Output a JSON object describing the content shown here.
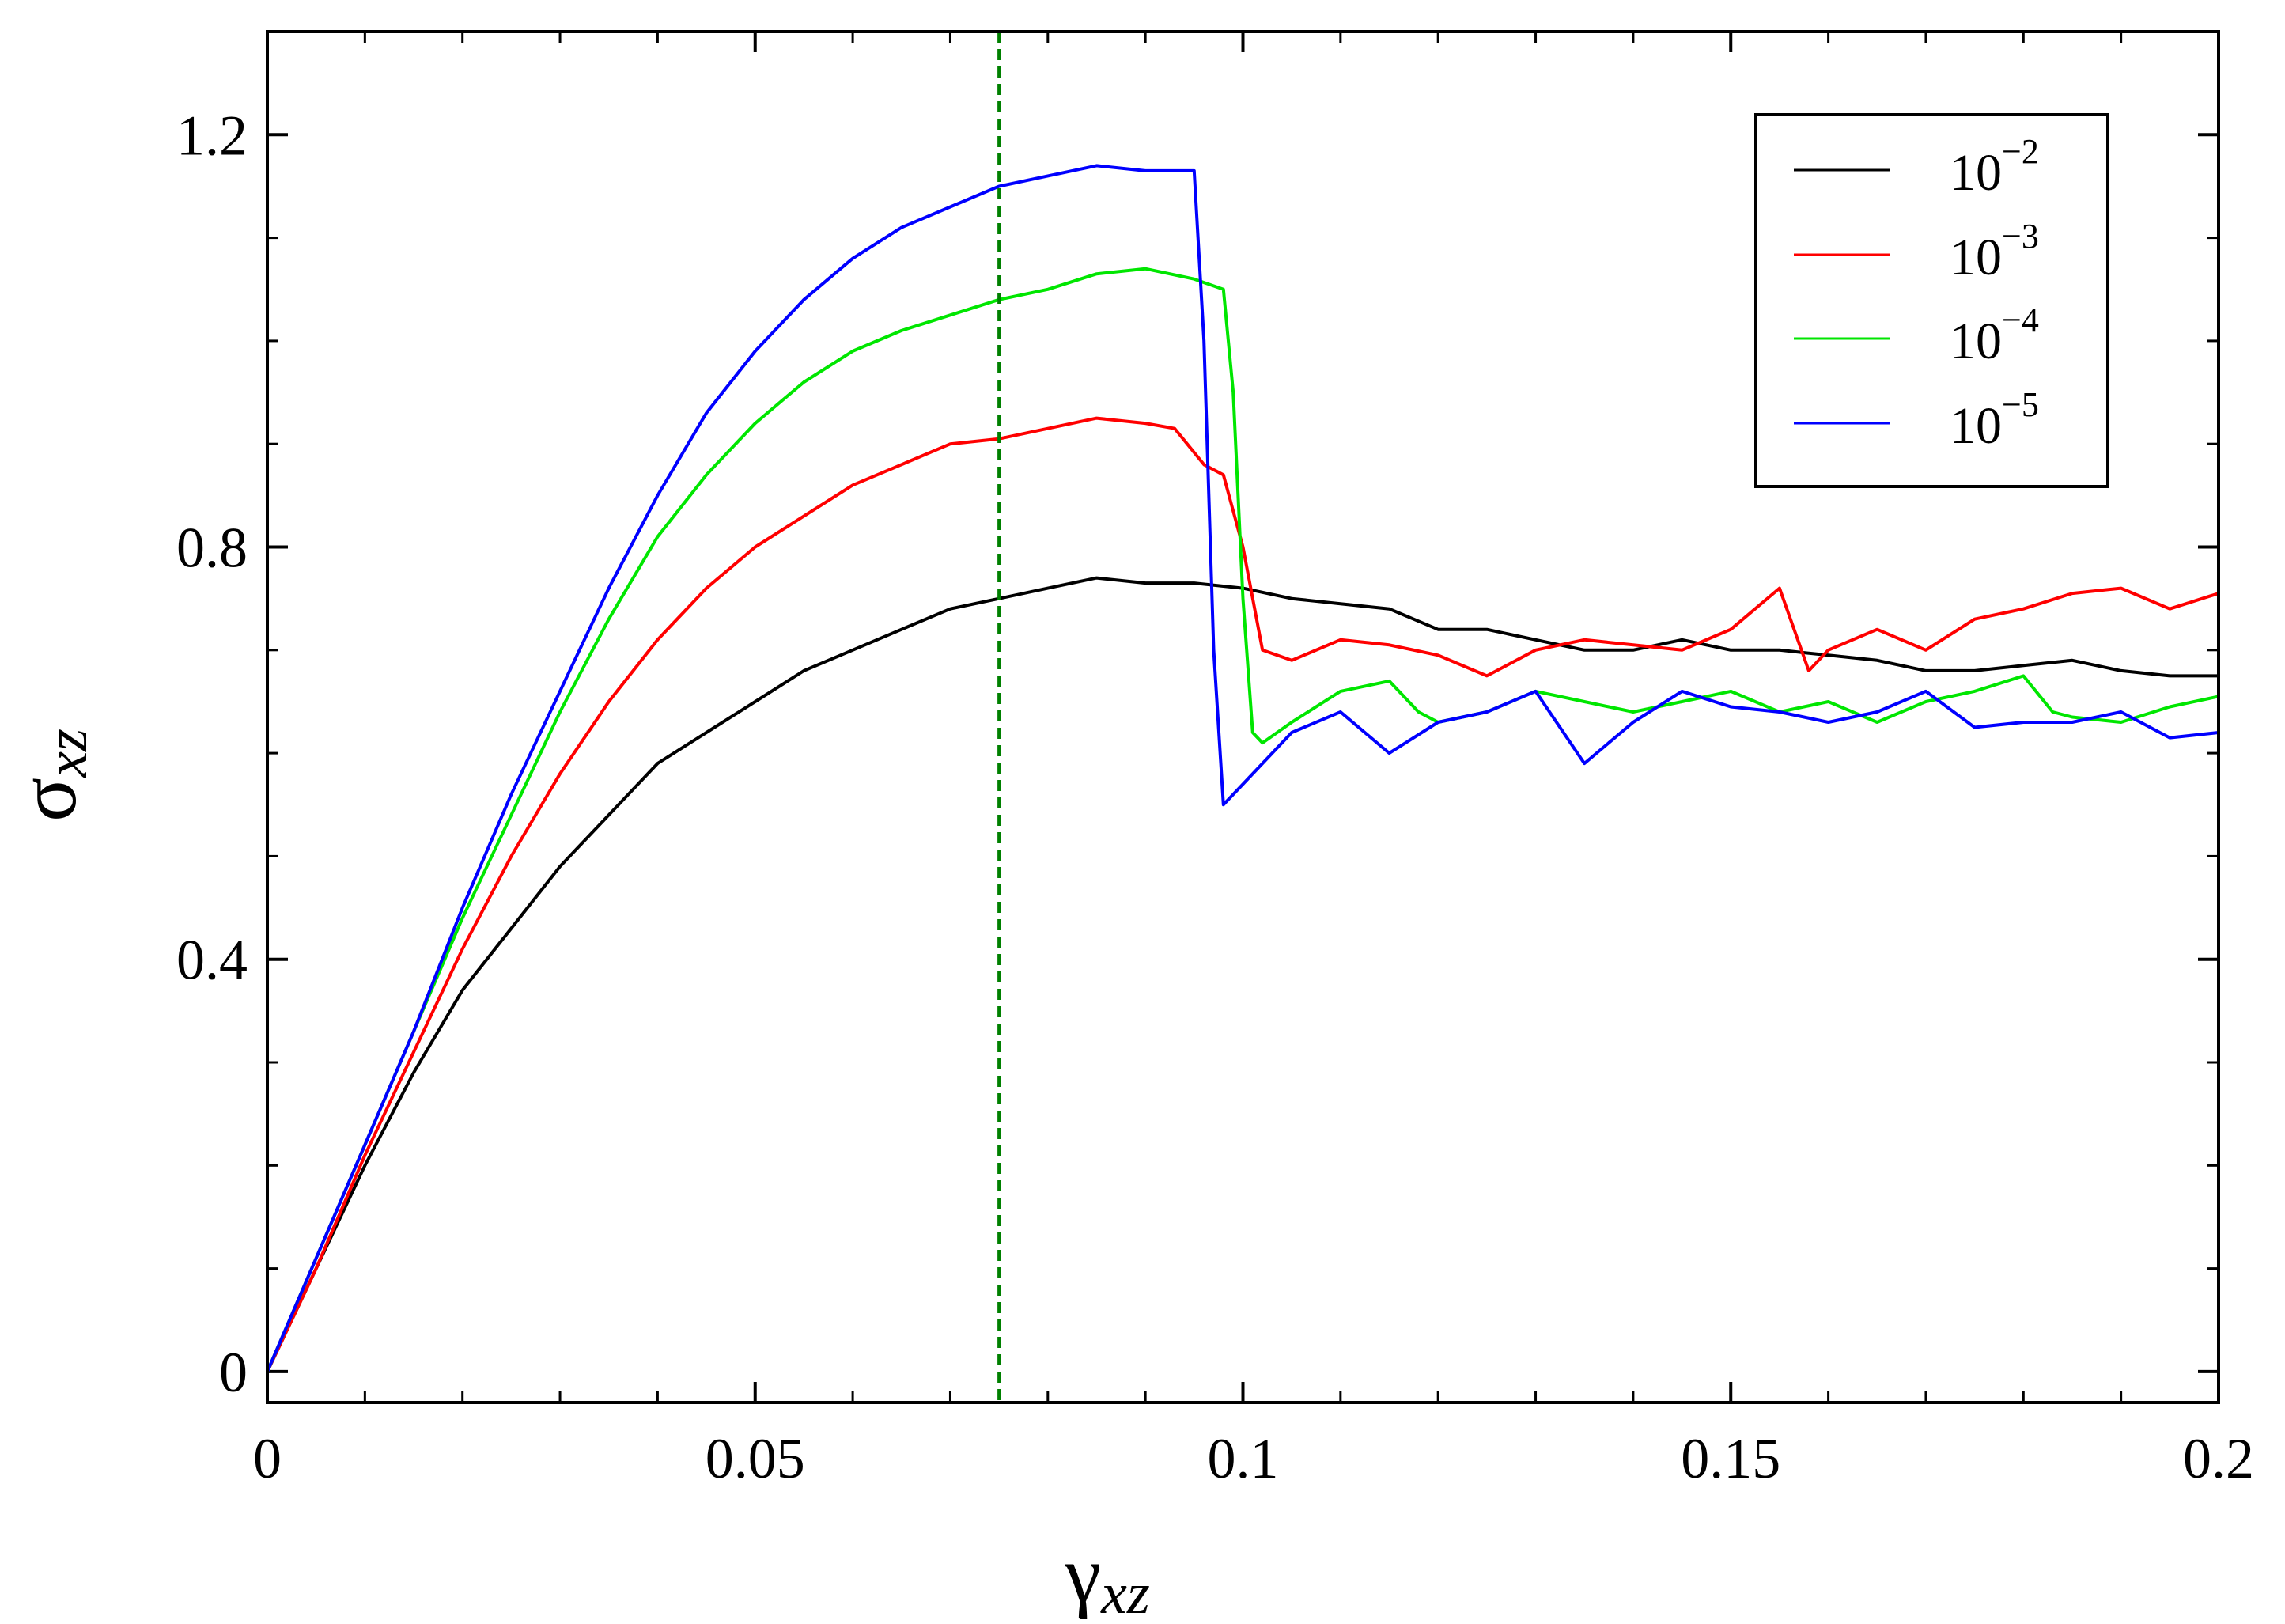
{
  "chart_data": {
    "type": "line",
    "xlabel": {
      "symbol": "γ",
      "subscript": "xz"
    },
    "ylabel": {
      "symbol": "σ",
      "subscript": "xz"
    },
    "xlim": [
      0,
      0.2
    ],
    "ylim": [
      -0.03,
      1.3
    ],
    "xticks": [
      {
        "value": 0,
        "label": "0"
      },
      {
        "value": 0.05,
        "label": "0.05"
      },
      {
        "value": 0.1,
        "label": "0.1"
      },
      {
        "value": 0.15,
        "label": "0.15"
      },
      {
        "value": 0.2,
        "label": "0.2"
      }
    ],
    "yticks": [
      {
        "value": 0,
        "label": "0"
      },
      {
        "value": 0.4,
        "label": "0.4"
      },
      {
        "value": 0.8,
        "label": "0.8"
      },
      {
        "value": 1.2,
        "label": "1.2"
      }
    ],
    "x_minor_step": 0.01,
    "y_minor_step": 0.1,
    "grid": false,
    "legend_position": "top-right",
    "vline": {
      "x": 0.075,
      "color": "#008000",
      "style": "dashed"
    },
    "series": [
      {
        "name": "10",
        "exponent": "−2",
        "color": "#000000",
        "points": [
          [
            0,
            0
          ],
          [
            0.005,
            0.1
          ],
          [
            0.01,
            0.2
          ],
          [
            0.015,
            0.29
          ],
          [
            0.02,
            0.37
          ],
          [
            0.025,
            0.43
          ],
          [
            0.03,
            0.49
          ],
          [
            0.035,
            0.54
          ],
          [
            0.04,
            0.59
          ],
          [
            0.045,
            0.62
          ],
          [
            0.05,
            0.65
          ],
          [
            0.055,
            0.68
          ],
          [
            0.06,
            0.7
          ],
          [
            0.065,
            0.72
          ],
          [
            0.07,
            0.74
          ],
          [
            0.075,
            0.75
          ],
          [
            0.08,
            0.76
          ],
          [
            0.085,
            0.77
          ],
          [
            0.09,
            0.765
          ],
          [
            0.095,
            0.765
          ],
          [
            0.1,
            0.76
          ],
          [
            0.105,
            0.75
          ],
          [
            0.11,
            0.745
          ],
          [
            0.115,
            0.74
          ],
          [
            0.12,
            0.72
          ],
          [
            0.125,
            0.72
          ],
          [
            0.13,
            0.71
          ],
          [
            0.135,
            0.7
          ],
          [
            0.14,
            0.7
          ],
          [
            0.145,
            0.71
          ],
          [
            0.15,
            0.7
          ],
          [
            0.155,
            0.7
          ],
          [
            0.16,
            0.695
          ],
          [
            0.165,
            0.69
          ],
          [
            0.17,
            0.68
          ],
          [
            0.175,
            0.68
          ],
          [
            0.18,
            0.685
          ],
          [
            0.185,
            0.69
          ],
          [
            0.19,
            0.68
          ],
          [
            0.195,
            0.675
          ],
          [
            0.2,
            0.675
          ]
        ]
      },
      {
        "name": "10",
        "exponent": "−3",
        "color": "#ff0000",
        "points": [
          [
            0,
            0
          ],
          [
            0.005,
            0.1
          ],
          [
            0.01,
            0.21
          ],
          [
            0.015,
            0.31
          ],
          [
            0.02,
            0.41
          ],
          [
            0.025,
            0.5
          ],
          [
            0.03,
            0.58
          ],
          [
            0.035,
            0.65
          ],
          [
            0.04,
            0.71
          ],
          [
            0.045,
            0.76
          ],
          [
            0.05,
            0.8
          ],
          [
            0.055,
            0.83
          ],
          [
            0.06,
            0.86
          ],
          [
            0.065,
            0.88
          ],
          [
            0.07,
            0.9
          ],
          [
            0.075,
            0.905
          ],
          [
            0.08,
            0.915
          ],
          [
            0.085,
            0.925
          ],
          [
            0.09,
            0.92
          ],
          [
            0.093,
            0.915
          ],
          [
            0.096,
            0.88
          ],
          [
            0.098,
            0.87
          ],
          [
            0.1,
            0.8
          ],
          [
            0.102,
            0.7
          ],
          [
            0.105,
            0.69
          ],
          [
            0.11,
            0.71
          ],
          [
            0.115,
            0.705
          ],
          [
            0.12,
            0.695
          ],
          [
            0.125,
            0.675
          ],
          [
            0.13,
            0.7
          ],
          [
            0.135,
            0.71
          ],
          [
            0.14,
            0.705
          ],
          [
            0.145,
            0.7
          ],
          [
            0.15,
            0.72
          ],
          [
            0.155,
            0.76
          ],
          [
            0.158,
            0.68
          ],
          [
            0.16,
            0.7
          ],
          [
            0.165,
            0.72
          ],
          [
            0.17,
            0.7
          ],
          [
            0.175,
            0.73
          ],
          [
            0.18,
            0.74
          ],
          [
            0.185,
            0.755
          ],
          [
            0.19,
            0.76
          ],
          [
            0.195,
            0.74
          ],
          [
            0.2,
            0.755
          ]
        ]
      },
      {
        "name": "10",
        "exponent": "−4",
        "color": "#00e600",
        "points": [
          [
            0,
            0
          ],
          [
            0.005,
            0.11
          ],
          [
            0.01,
            0.22
          ],
          [
            0.015,
            0.33
          ],
          [
            0.02,
            0.44
          ],
          [
            0.025,
            0.54
          ],
          [
            0.03,
            0.64
          ],
          [
            0.035,
            0.73
          ],
          [
            0.04,
            0.81
          ],
          [
            0.045,
            0.87
          ],
          [
            0.05,
            0.92
          ],
          [
            0.055,
            0.96
          ],
          [
            0.06,
            0.99
          ],
          [
            0.065,
            1.01
          ],
          [
            0.07,
            1.025
          ],
          [
            0.075,
            1.04
          ],
          [
            0.08,
            1.05
          ],
          [
            0.085,
            1.065
          ],
          [
            0.09,
            1.07
          ],
          [
            0.095,
            1.06
          ],
          [
            0.098,
            1.05
          ],
          [
            0.099,
            0.95
          ],
          [
            0.1,
            0.75
          ],
          [
            0.101,
            0.62
          ],
          [
            0.102,
            0.61
          ],
          [
            0.105,
            0.63
          ],
          [
            0.11,
            0.66
          ],
          [
            0.115,
            0.67
          ],
          [
            0.118,
            0.64
          ],
          [
            0.12,
            0.63
          ],
          [
            0.125,
            0.64
          ],
          [
            0.13,
            0.66
          ],
          [
            0.135,
            0.65
          ],
          [
            0.14,
            0.64
          ],
          [
            0.145,
            0.65
          ],
          [
            0.15,
            0.66
          ],
          [
            0.155,
            0.64
          ],
          [
            0.16,
            0.65
          ],
          [
            0.165,
            0.63
          ],
          [
            0.17,
            0.65
          ],
          [
            0.175,
            0.66
          ],
          [
            0.18,
            0.675
          ],
          [
            0.183,
            0.64
          ],
          [
            0.185,
            0.635
          ],
          [
            0.19,
            0.63
          ],
          [
            0.195,
            0.645
          ],
          [
            0.2,
            0.655
          ]
        ]
      },
      {
        "name": "10",
        "exponent": "−5",
        "color": "#0000ff",
        "points": [
          [
            0,
            0
          ],
          [
            0.005,
            0.11
          ],
          [
            0.01,
            0.22
          ],
          [
            0.015,
            0.33
          ],
          [
            0.02,
            0.45
          ],
          [
            0.025,
            0.56
          ],
          [
            0.03,
            0.66
          ],
          [
            0.035,
            0.76
          ],
          [
            0.04,
            0.85
          ],
          [
            0.045,
            0.93
          ],
          [
            0.05,
            0.99
          ],
          [
            0.055,
            1.04
          ],
          [
            0.06,
            1.08
          ],
          [
            0.065,
            1.11
          ],
          [
            0.07,
            1.13
          ],
          [
            0.075,
            1.15
          ],
          [
            0.08,
            1.16
          ],
          [
            0.085,
            1.17
          ],
          [
            0.09,
            1.165
          ],
          [
            0.095,
            1.165
          ],
          [
            0.096,
            1.0
          ],
          [
            0.097,
            0.7
          ],
          [
            0.098,
            0.55
          ],
          [
            0.1,
            0.57
          ],
          [
            0.105,
            0.62
          ],
          [
            0.11,
            0.64
          ],
          [
            0.115,
            0.6
          ],
          [
            0.12,
            0.63
          ],
          [
            0.125,
            0.64
          ],
          [
            0.13,
            0.66
          ],
          [
            0.135,
            0.59
          ],
          [
            0.14,
            0.63
          ],
          [
            0.145,
            0.66
          ],
          [
            0.15,
            0.645
          ],
          [
            0.155,
            0.64
          ],
          [
            0.16,
            0.63
          ],
          [
            0.165,
            0.64
          ],
          [
            0.17,
            0.66
          ],
          [
            0.175,
            0.625
          ],
          [
            0.18,
            0.63
          ],
          [
            0.185,
            0.63
          ],
          [
            0.19,
            0.64
          ],
          [
            0.195,
            0.615
          ],
          [
            0.2,
            0.62
          ]
        ]
      }
    ]
  }
}
